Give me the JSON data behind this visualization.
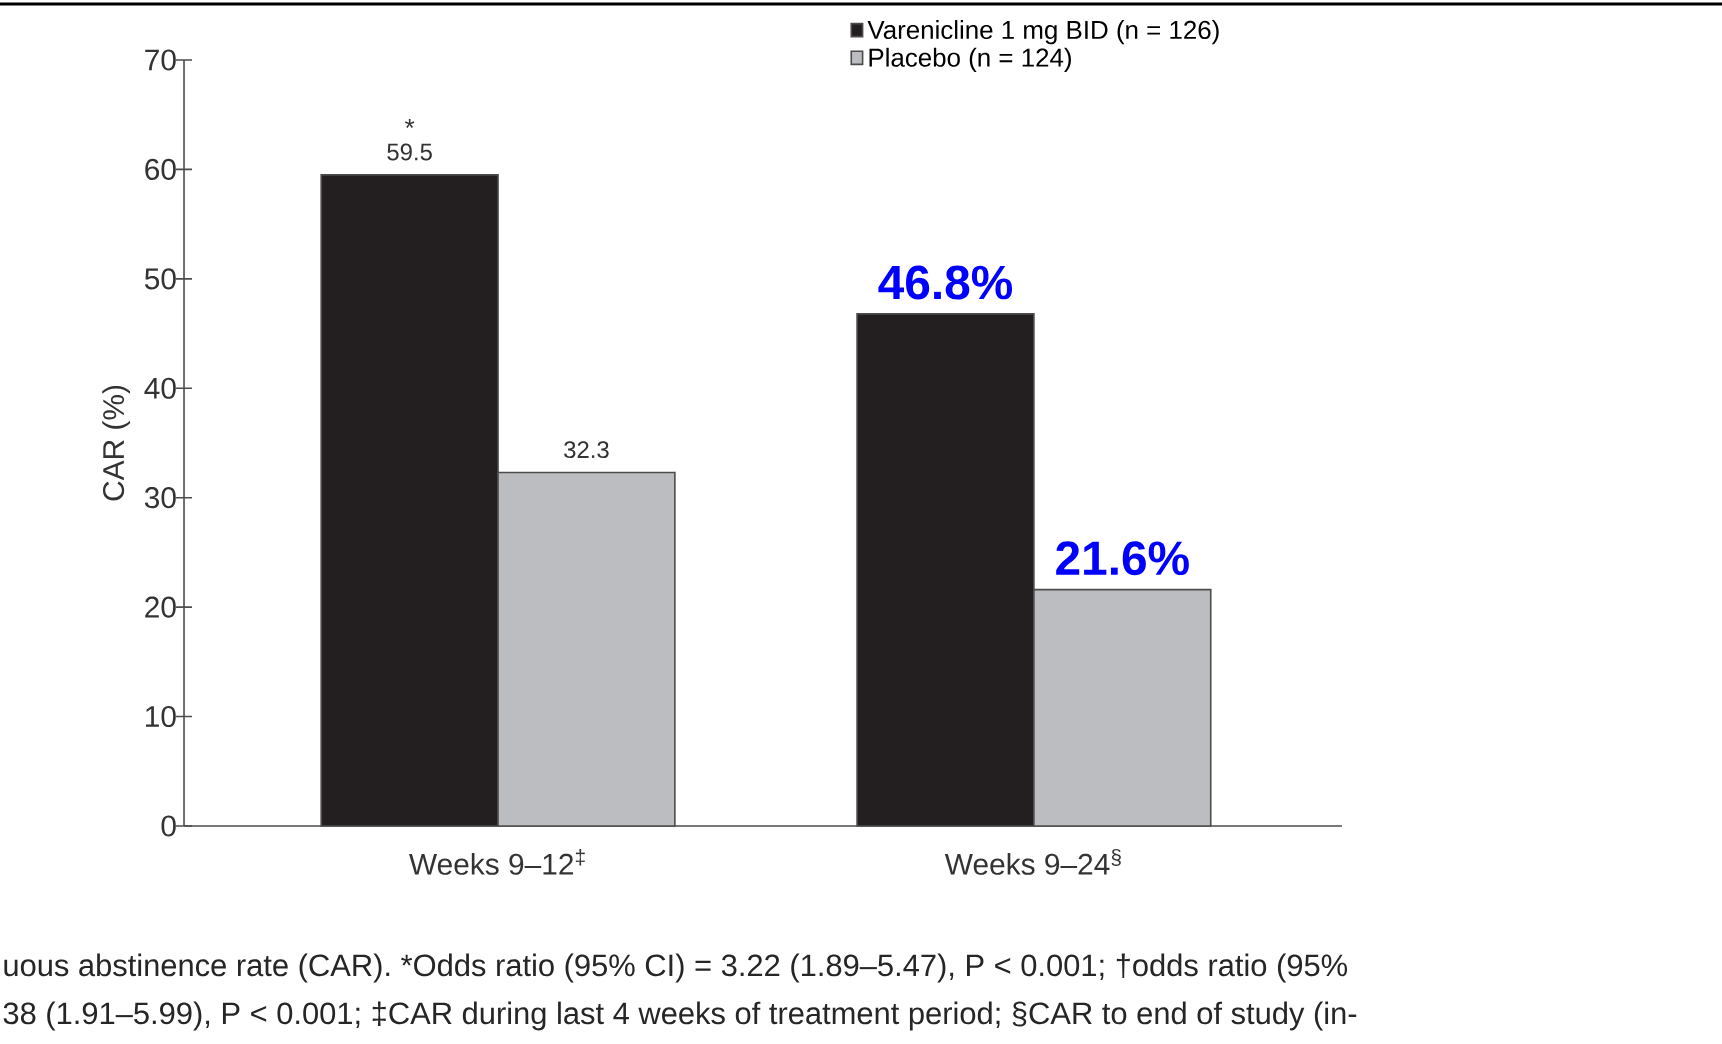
{
  "chart_data": {
    "type": "bar",
    "ylabel": "CAR (%)",
    "categories": [
      "Weeks 9–12$^{‡}$",
      "Weeks 9–24$^{§}$"
    ],
    "series": [
      {
        "name": "Varenicline 1 mg BID (n = 126)",
        "color": "#231f20",
        "values": [
          59.5,
          46.8
        ],
        "value_labels": [
          "59.5",
          "46.8%"
        ]
      },
      {
        "name": "Placebo (n = 124)",
        "color": "#bcbdc0",
        "values": [
          32.3,
          21.6
        ],
        "value_labels": [
          "32.3",
          "21.6%"
        ]
      }
    ],
    "ylim": [
      0,
      70
    ],
    "yticks": [
      0,
      10,
      20,
      30,
      40,
      50,
      60,
      70
    ],
    "legend": "top",
    "annotations": [
      "*",
      "uous abstinence rate (CAR). *Odds ratio (95% CI) = 3.22 (1.89–5.47), P < 0.001; †odds ratio (95%",
      "38 (1.91–5.99), P < 0.001; ‡CAR during last 4 weeks of treatment period; §CAR to end of study (in-"
    ]
  }
}
